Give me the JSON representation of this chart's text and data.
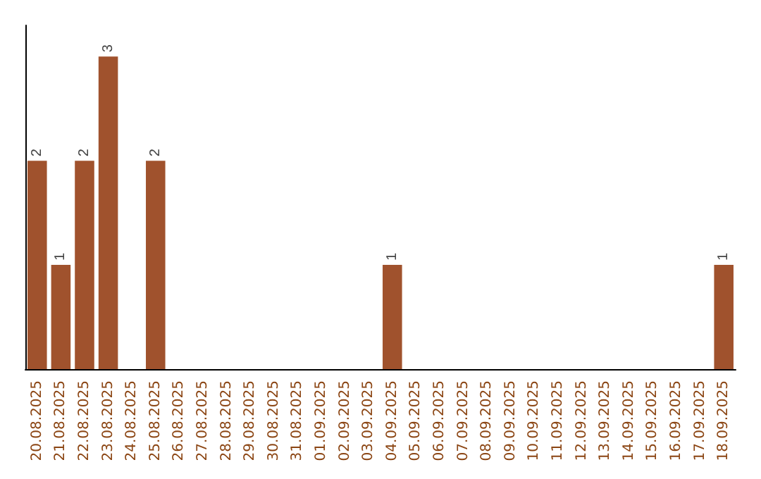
{
  "chart_data": {
    "type": "bar",
    "categories": [
      "20.08.2025",
      "21.08.2025",
      "22.08.2025",
      "23.08.2025",
      "24.08.2025",
      "25.08.2025",
      "26.08.2025",
      "27.08.2025",
      "28.08.2025",
      "29.08.2025",
      "30.08.2025",
      "31.08.2025",
      "01.09.2025",
      "02.09.2025",
      "03.09.2025",
      "04.09.2025",
      "05.09.2025",
      "06.09.2025",
      "07.09.2025",
      "08.09.2025",
      "09.09.2025",
      "10.09.2025",
      "11.09.2025",
      "12.09.2025",
      "13.09.2025",
      "14.09.2025",
      "15.09.2025",
      "16.09.2025",
      "17.09.2025",
      "18.09.2025"
    ],
    "values": [
      2,
      1,
      2,
      3,
      0,
      2,
      0,
      0,
      0,
      0,
      0,
      0,
      0,
      0,
      0,
      1,
      0,
      0,
      0,
      0,
      0,
      0,
      0,
      0,
      0,
      0,
      0,
      0,
      0,
      1
    ],
    "value_labels": [
      "2",
      "1",
      "2",
      "3",
      null,
      "2",
      null,
      null,
      null,
      null,
      null,
      null,
      null,
      null,
      null,
      "1",
      null,
      null,
      null,
      null,
      null,
      null,
      null,
      null,
      null,
      null,
      null,
      null,
      null,
      "1"
    ],
    "color": "#a0522d",
    "tick_labels": "x"
  }
}
